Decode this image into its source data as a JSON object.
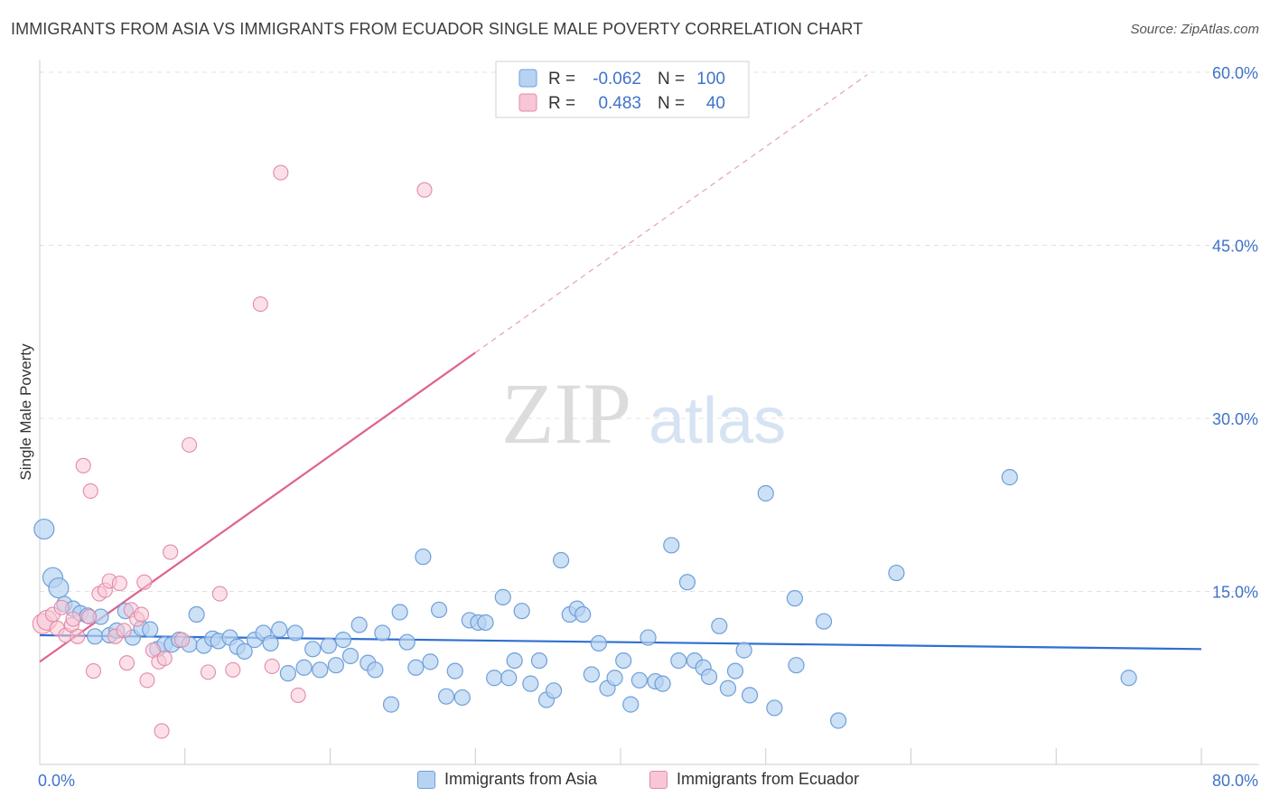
{
  "header": {
    "title": "IMMIGRANTS FROM ASIA VS IMMIGRANTS FROM ECUADOR SINGLE MALE POVERTY CORRELATION CHART",
    "source": "Source: ZipAtlas.com"
  },
  "watermark": {
    "zip": "ZIP",
    "atlas": "atlas"
  },
  "colors": {
    "asia_fill": "#b7d3f2",
    "asia_stroke": "#6f9fd8",
    "asia_line": "#2f6fcf",
    "ecuador_fill": "#f8c6d5",
    "ecuador_stroke": "#e38aa8",
    "ecuador_line": "#e0628e",
    "tick_label": "#3f73c9",
    "grid": "#e0e0e0"
  },
  "legend_box": {
    "rows": [
      {
        "r_label": "R =",
        "r_value": "-0.062",
        "n_label": "N =",
        "n_value": "100"
      },
      {
        "r_label": "R =",
        "r_value": "0.483",
        "n_label": "N =",
        "n_value": "40"
      }
    ]
  },
  "chart_data": {
    "type": "scatter",
    "title": "IMMIGRANTS FROM ASIA VS IMMIGRANTS FROM ECUADOR SINGLE MALE POVERTY CORRELATION CHART",
    "xlabel": "",
    "ylabel": "Single Male Poverty",
    "xlim": [
      0,
      80
    ],
    "ylim": [
      0,
      60
    ],
    "x_tick_labels": [
      "0.0%",
      "80.0%"
    ],
    "y_tick_labels": [
      "15.0%",
      "30.0%",
      "45.0%",
      "60.0%"
    ],
    "y_ticks": [
      15,
      30,
      45,
      60
    ],
    "grid": true,
    "legend_position": "bottom",
    "series": [
      {
        "name": "Immigrants from Asia",
        "R": -0.062,
        "N": 100,
        "trend": {
          "x0": 0,
          "y0": 11.2,
          "x1": 80,
          "y1": 10.0
        },
        "points": [
          [
            0.3,
            20.4
          ],
          [
            0.9,
            16.2
          ],
          [
            1.3,
            15.3
          ],
          [
            1.7,
            13.9
          ],
          [
            2.3,
            13.5
          ],
          [
            2.8,
            13.1
          ],
          [
            3.3,
            12.9
          ],
          [
            3.8,
            11.1
          ],
          [
            4.2,
            12.8
          ],
          [
            4.8,
            11.2
          ],
          [
            5.3,
            11.6
          ],
          [
            5.9,
            13.3
          ],
          [
            6.4,
            11.0
          ],
          [
            7.0,
            11.8
          ],
          [
            7.6,
            11.7
          ],
          [
            8.1,
            10.0
          ],
          [
            8.6,
            10.4
          ],
          [
            9.1,
            10.4
          ],
          [
            9.6,
            10.8
          ],
          [
            10.3,
            10.4
          ],
          [
            10.8,
            13.0
          ],
          [
            11.3,
            10.3
          ],
          [
            11.9,
            10.9
          ],
          [
            12.3,
            10.7
          ],
          [
            13.1,
            11.0
          ],
          [
            13.6,
            10.2
          ],
          [
            14.1,
            9.8
          ],
          [
            14.8,
            10.8
          ],
          [
            15.4,
            11.4
          ],
          [
            15.9,
            10.5
          ],
          [
            16.5,
            11.7
          ],
          [
            17.1,
            7.9
          ],
          [
            17.6,
            11.4
          ],
          [
            18.2,
            8.4
          ],
          [
            18.8,
            10.0
          ],
          [
            19.3,
            8.2
          ],
          [
            19.9,
            10.3
          ],
          [
            20.4,
            8.6
          ],
          [
            20.9,
            10.8
          ],
          [
            21.4,
            9.4
          ],
          [
            22.0,
            12.1
          ],
          [
            22.6,
            8.8
          ],
          [
            23.1,
            8.2
          ],
          [
            23.6,
            11.4
          ],
          [
            24.2,
            5.2
          ],
          [
            24.8,
            13.2
          ],
          [
            25.3,
            10.6
          ],
          [
            25.9,
            8.4
          ],
          [
            26.4,
            18.0
          ],
          [
            26.9,
            8.9
          ],
          [
            27.5,
            13.4
          ],
          [
            28.0,
            5.9
          ],
          [
            28.6,
            8.1
          ],
          [
            29.1,
            5.8
          ],
          [
            29.6,
            12.5
          ],
          [
            30.2,
            12.3
          ],
          [
            30.7,
            12.3
          ],
          [
            31.3,
            7.5
          ],
          [
            31.9,
            14.5
          ],
          [
            32.3,
            7.5
          ],
          [
            32.7,
            9.0
          ],
          [
            33.2,
            13.3
          ],
          [
            33.8,
            7.0
          ],
          [
            34.4,
            9.0
          ],
          [
            34.9,
            5.6
          ],
          [
            35.4,
            6.4
          ],
          [
            35.9,
            17.7
          ],
          [
            36.5,
            13.0
          ],
          [
            37.0,
            13.5
          ],
          [
            37.4,
            13.0
          ],
          [
            38.0,
            7.8
          ],
          [
            38.5,
            10.5
          ],
          [
            39.1,
            6.6
          ],
          [
            39.6,
            7.5
          ],
          [
            40.2,
            9.0
          ],
          [
            40.7,
            5.2
          ],
          [
            41.3,
            7.3
          ],
          [
            41.9,
            11.0
          ],
          [
            42.4,
            7.2
          ],
          [
            42.9,
            7.0
          ],
          [
            43.5,
            19.0
          ],
          [
            44.0,
            9.0
          ],
          [
            44.6,
            15.8
          ],
          [
            45.1,
            9.0
          ],
          [
            45.7,
            8.4
          ],
          [
            46.1,
            7.6
          ],
          [
            46.8,
            12.0
          ],
          [
            47.4,
            6.6
          ],
          [
            47.9,
            8.1
          ],
          [
            48.5,
            9.9
          ],
          [
            48.9,
            6.0
          ],
          [
            50.0,
            23.5
          ],
          [
            50.6,
            4.9
          ],
          [
            52.0,
            14.4
          ],
          [
            52.1,
            8.6
          ],
          [
            54.0,
            12.4
          ],
          [
            55.0,
            3.8
          ],
          [
            59.0,
            16.6
          ],
          [
            66.8,
            24.9
          ],
          [
            75.0,
            7.5
          ]
        ]
      },
      {
        "name": "Immigrants from Ecuador",
        "R": 0.483,
        "N": 40,
        "trend": {
          "x0": 0,
          "y0": 8.9,
          "x1": 30,
          "y1": 35.7,
          "dash_to_x": 57,
          "dash_to_y": 59.8
        },
        "points": [
          [
            0.2,
            12.2
          ],
          [
            0.5,
            12.5
          ],
          [
            0.9,
            13.0
          ],
          [
            1.2,
            11.8
          ],
          [
            1.5,
            13.6
          ],
          [
            1.8,
            11.2
          ],
          [
            2.2,
            12.1
          ],
          [
            2.6,
            11.1
          ],
          [
            3.0,
            25.9
          ],
          [
            3.4,
            12.8
          ],
          [
            3.5,
            23.7
          ],
          [
            3.7,
            8.1
          ],
          [
            4.1,
            14.8
          ],
          [
            4.5,
            15.1
          ],
          [
            4.8,
            15.9
          ],
          [
            5.2,
            11.1
          ],
          [
            5.5,
            15.7
          ],
          [
            5.8,
            11.6
          ],
          [
            6.0,
            8.8
          ],
          [
            6.3,
            13.4
          ],
          [
            6.7,
            12.6
          ],
          [
            7.0,
            13.0
          ],
          [
            7.2,
            15.8
          ],
          [
            7.4,
            7.3
          ],
          [
            7.8,
            9.9
          ],
          [
            8.2,
            8.9
          ],
          [
            8.4,
            2.9
          ],
          [
            8.6,
            9.2
          ],
          [
            9.0,
            18.4
          ],
          [
            9.8,
            10.8
          ],
          [
            10.3,
            27.7
          ],
          [
            11.6,
            8.0
          ],
          [
            12.4,
            14.8
          ],
          [
            13.3,
            8.2
          ],
          [
            15.2,
            39.9
          ],
          [
            16.0,
            8.5
          ],
          [
            16.6,
            51.3
          ],
          [
            17.8,
            6.0
          ],
          [
            26.5,
            49.8
          ],
          [
            2.3,
            12.6
          ]
        ]
      }
    ]
  }
}
